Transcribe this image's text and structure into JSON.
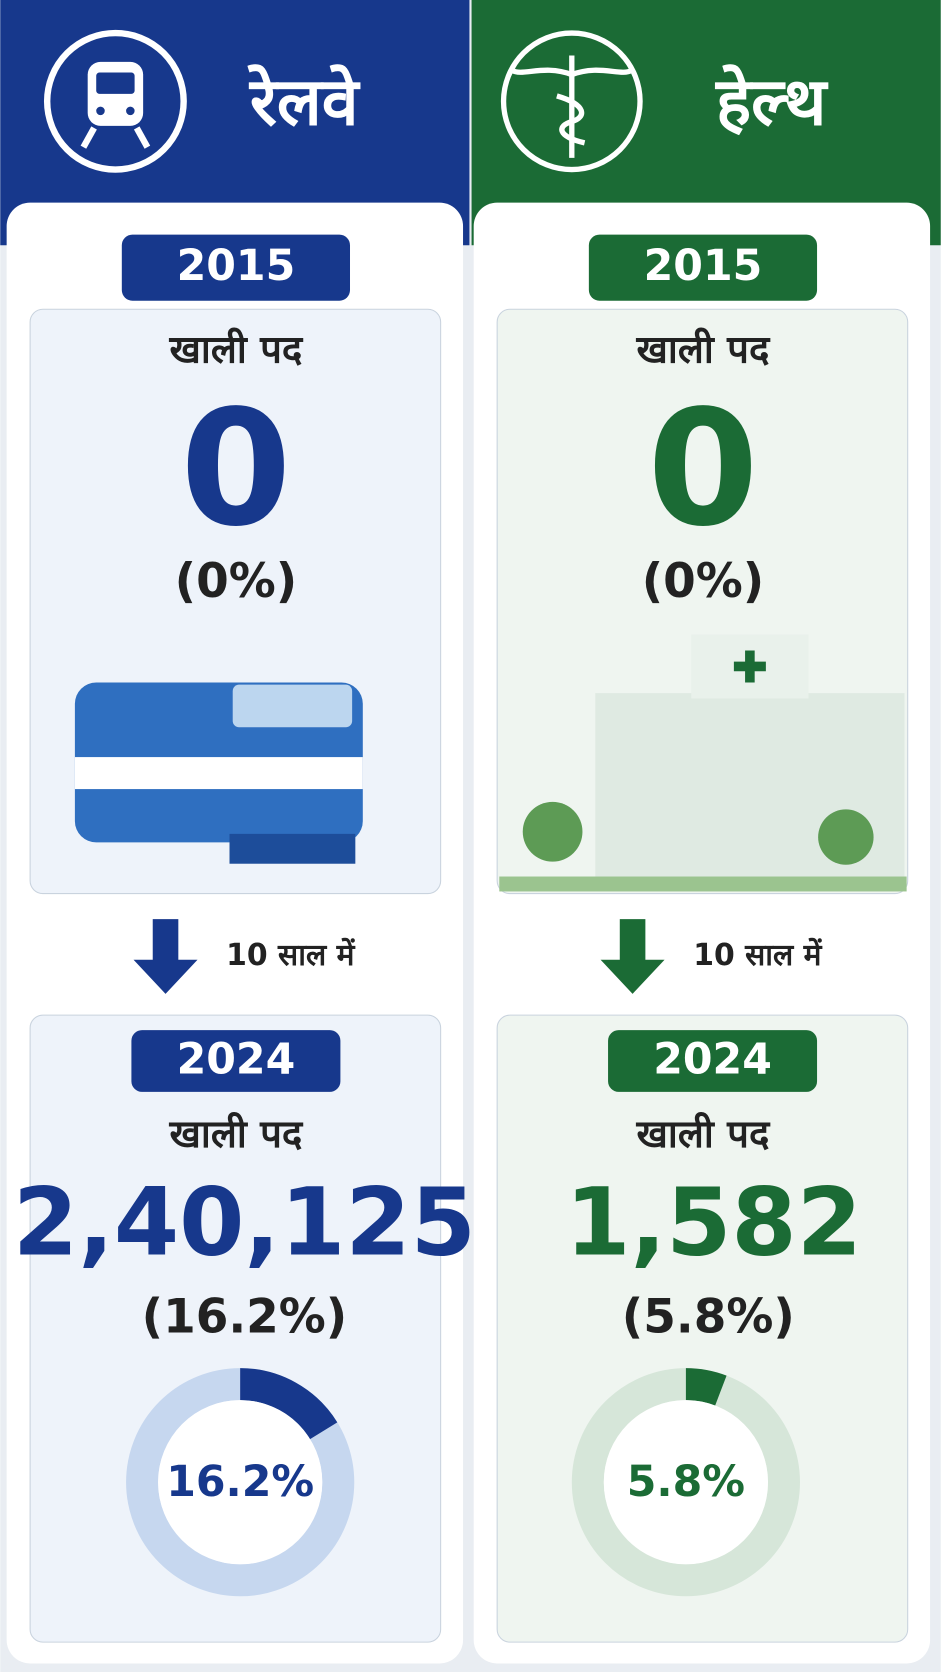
{
  "panels": [
    {
      "title": "रेलवे",
      "color": "#17388c",
      "ring": "#c6d7ef",
      "tint": "#eef3fa",
      "before": {
        "year": "2015",
        "label": "खाली पद",
        "count": "0",
        "percent": "(0%)"
      },
      "transition": "10 साल में",
      "after": {
        "year": "2024",
        "label": "खाली पद",
        "count": "2,40,125",
        "percent": "(16.2%)",
        "share": {
          "value": 16.2,
          "label": "16.2%"
        }
      }
    },
    {
      "title": "हेल्थ",
      "color": "#1b6b35",
      "ring": "#d6e6d9",
      "tint": "#eff5f0",
      "before": {
        "year": "2015",
        "label": "खाली पद",
        "count": "0",
        "percent": "(0%)"
      },
      "transition": "10 साल में",
      "after": {
        "year": "2024",
        "label": "खाली पद",
        "count": "1,582",
        "percent": "(5.8%)",
        "share": {
          "value": 5.8,
          "label": "5.8%"
        }
      }
    }
  ]
}
